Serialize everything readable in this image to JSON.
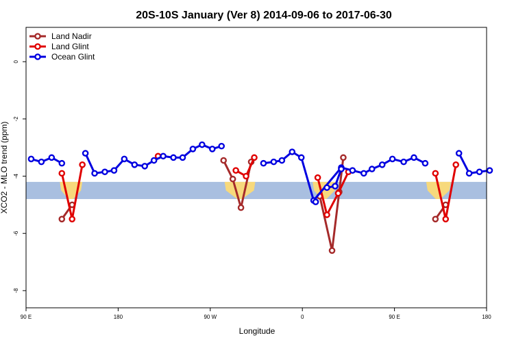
{
  "chart_data": {
    "type": "line",
    "title": "20S-10S January (Ver 8)   2014-09-06 to 2017-06-30",
    "xlabel": "Longitude",
    "ylabel": "XCO2 - MLO trend (ppm)",
    "xlim": [
      90,
      450
    ],
    "ylim": [
      -8.6,
      1.2
    ],
    "x_ticks": [
      {
        "value": 90,
        "label": "90 E"
      },
      {
        "value": 180,
        "label": "180"
      },
      {
        "value": 270,
        "label": "90 W"
      },
      {
        "value": 360,
        "label": "0"
      },
      {
        "value": 450,
        "label": "90 E"
      },
      {
        "value": 540,
        "label": "180"
      }
    ],
    "x_range_display": [
      90,
      540
    ],
    "y_ticks": [
      0,
      -2,
      -4,
      -6,
      -8
    ],
    "legend_position": "top-left",
    "land_band": {
      "y_top": -4.2,
      "y_bottom": -4.8,
      "ocean_color": "#a9bfe0",
      "land_color": "#f7d97c",
      "land_regions": [
        {
          "lon_start": 123,
          "lon_end": 145
        },
        {
          "lon_start": 284,
          "lon_end": 314
        },
        {
          "lon_start": 370,
          "lon_end": 393
        },
        {
          "lon_start": 481,
          "lon_end": 505
        }
      ]
    },
    "series": [
      {
        "name": "Land Nadir",
        "color": "#a52a2a",
        "segments": [
          {
            "x": [
              125,
              135
            ],
            "y": [
              -5.5,
              -5.0
            ]
          },
          {
            "x": [
              283,
              292,
              300,
              310
            ],
            "y": [
              -3.45,
              -4.1,
              -5.1,
              -3.5
            ]
          },
          {
            "x": [
              377,
              389,
              396,
              400
            ],
            "y": [
              -4.7,
              -6.6,
              -4.55,
              -3.35
            ]
          },
          {
            "x": [
              490,
              500
            ],
            "y": [
              -5.5,
              -5.0
            ]
          }
        ]
      },
      {
        "name": "Land Glint",
        "color": "#e00000",
        "segments": [
          {
            "x": [
              125,
              135,
              145
            ],
            "y": [
              -3.9,
              -5.5,
              -3.6
            ]
          },
          {
            "x": [
              219
            ],
            "y": [
              -3.3
            ]
          },
          {
            "x": [
              295,
              305,
              313
            ],
            "y": [
              -3.8,
              -4.0,
              -3.35
            ]
          },
          {
            "x": [
              375,
              384,
              395,
              405
            ],
            "y": [
              -4.05,
              -5.35,
              -4.6,
              -3.85
            ]
          },
          {
            "x": [
              490,
              500,
              510
            ],
            "y": [
              -3.9,
              -5.5,
              -3.6
            ]
          }
        ]
      },
      {
        "name": "Ocean Glint",
        "color": "#0000e0",
        "segments": [
          {
            "x": [
              95,
              105,
              115,
              125
            ],
            "y": [
              -3.4,
              -3.5,
              -3.35,
              -3.55
            ]
          },
          {
            "x": [
              148,
              157,
              167,
              176,
              186,
              196,
              206,
              215,
              224,
              234,
              243,
              253,
              262,
              272,
              281
            ],
            "y": [
              -3.2,
              -3.9,
              -3.85,
              -3.8,
              -3.4,
              -3.6,
              -3.65,
              -3.45,
              -3.3,
              -3.35,
              -3.35,
              -3.05,
              -2.9,
              -3.05,
              -2.95
            ]
          },
          {
            "x": [
              322,
              332,
              340,
              350,
              359,
              371,
              398,
              409,
              420,
              428,
              438,
              448,
              459,
              469,
              480
            ],
            "y": [
              -3.55,
              -3.5,
              -3.45,
              -3.15,
              -3.35,
              -4.85,
              -3.7,
              -3.8,
              -3.9,
              -3.75,
              -3.6,
              -3.4,
              -3.5,
              -3.35,
              -3.55
            ]
          },
          {
            "x": [
              373
            ],
            "y": [
              -4.9
            ]
          },
          {
            "x": [
              384,
              392,
              398
            ],
            "y": [
              -4.4,
              -4.35,
              -3.75
            ]
          },
          {
            "x": [
              513,
              523,
              533,
              543
            ],
            "y": [
              -3.2,
              -3.9,
              -3.85,
              -3.8
            ]
          }
        ]
      }
    ]
  }
}
